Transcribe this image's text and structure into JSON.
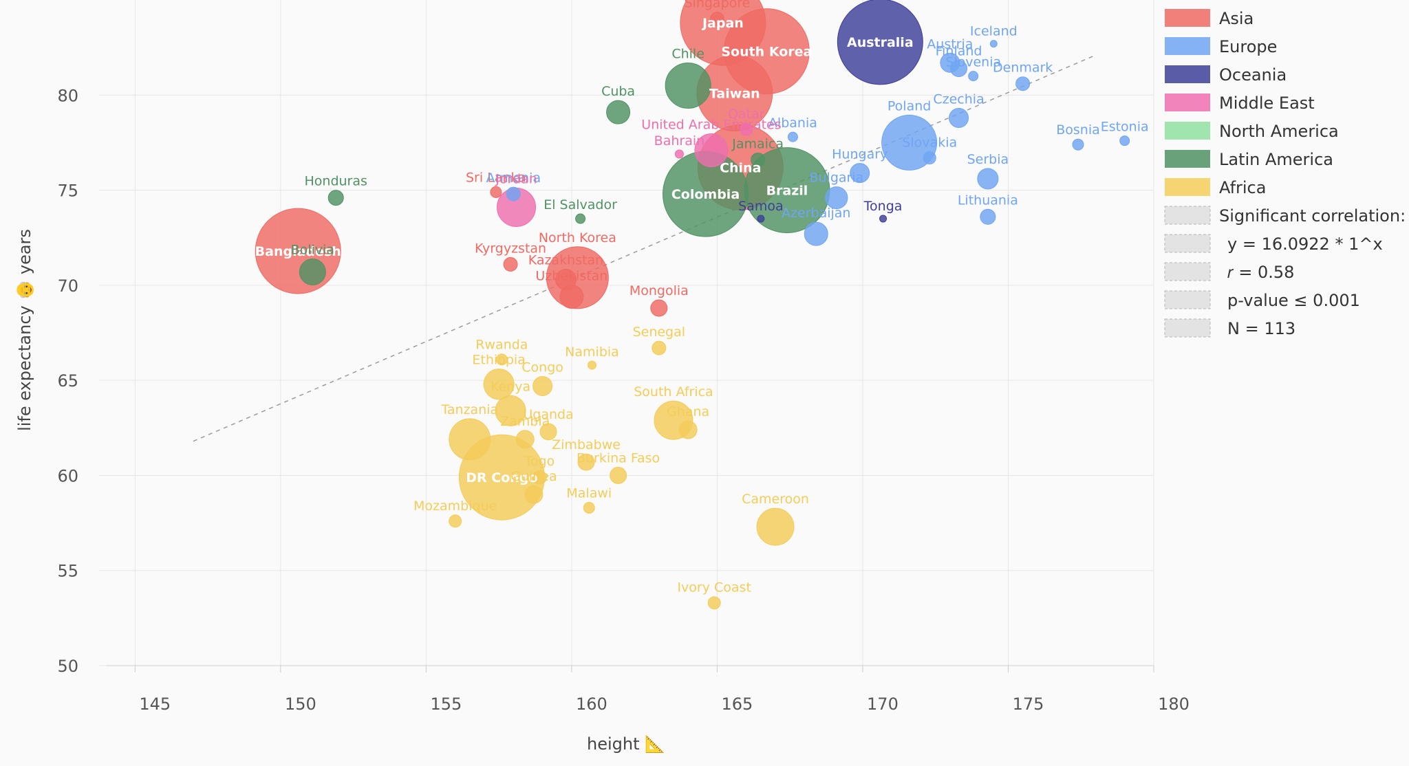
{
  "chart_data": {
    "type": "scatter",
    "title": "",
    "xlabel": "height 📐",
    "ylabel": "life expectancy 👴 years",
    "xlim": [
      144,
      180
    ],
    "ylim": [
      50,
      85
    ],
    "xticks": [
      145,
      150,
      155,
      160,
      165,
      170,
      175,
      180
    ],
    "yticks": [
      50,
      55,
      60,
      65,
      70,
      75,
      80
    ],
    "colors": {
      "Asia": "#ef6a63",
      "Europe": "#6fa5f3",
      "Oceania": "#3d3f99",
      "Middle East": "#ee6fae",
      "North America": "#8fe0a0",
      "Latin America": "#4f9263",
      "Africa": "#f4cc59"
    },
    "legend": {
      "series": [
        "Asia",
        "Europe",
        "Oceania",
        "Middle East",
        "North America",
        "Latin America",
        "Africa"
      ],
      "stats": [
        "Significant correlation:",
        "y = 16.0922 * 1^x",
        "𝑟 = 0.58",
        "p-value ≤ 0.001",
        "N = 113"
      ]
    },
    "trendline": {
      "x": [
        147,
        178
      ],
      "y": [
        61.8,
        82.1
      ]
    },
    "points": [
      {
        "name": "Japan",
        "x": 165.2,
        "y": 83.8,
        "r": 62,
        "region": "Asia",
        "inner": true
      },
      {
        "name": "Singapore",
        "x": 165.0,
        "y": 84.0,
        "r": 10,
        "region": "Asia"
      },
      {
        "name": "South Korea",
        "x": 166.7,
        "y": 82.3,
        "r": 62,
        "region": "Asia",
        "inner": true
      },
      {
        "name": "Australia",
        "x": 170.6,
        "y": 82.8,
        "r": 62,
        "region": "Oceania",
        "inner": true
      },
      {
        "name": "Taiwan",
        "x": 165.6,
        "y": 80.1,
        "r": 55,
        "region": "Asia",
        "inner": true
      },
      {
        "name": "Chile",
        "x": 164.0,
        "y": 80.5,
        "r": 33,
        "region": "Latin America"
      },
      {
        "name": "Cuba",
        "x": 161.6,
        "y": 79.1,
        "r": 17,
        "region": "Latin America"
      },
      {
        "name": "Iceland",
        "x": 174.5,
        "y": 82.7,
        "r": 5,
        "region": "Europe"
      },
      {
        "name": "Austria",
        "x": 173.0,
        "y": 81.7,
        "r": 14,
        "region": "Europe"
      },
      {
        "name": "Finland",
        "x": 173.3,
        "y": 81.4,
        "r": 12,
        "region": "Europe"
      },
      {
        "name": "Slovenia",
        "x": 173.8,
        "y": 81.0,
        "r": 7,
        "region": "Europe"
      },
      {
        "name": "Denmark",
        "x": 175.5,
        "y": 80.6,
        "r": 10,
        "region": "Europe"
      },
      {
        "name": "Czechia",
        "x": 173.3,
        "y": 78.8,
        "r": 14,
        "region": "Europe"
      },
      {
        "name": "Poland",
        "x": 171.6,
        "y": 77.5,
        "r": 40,
        "region": "Europe"
      },
      {
        "name": "Albania",
        "x": 167.6,
        "y": 77.8,
        "r": 7,
        "region": "Europe"
      },
      {
        "name": "Qatar",
        "x": 166.0,
        "y": 78.2,
        "r": 9,
        "region": "Middle East"
      },
      {
        "name": "United Arab Emirates",
        "x": 164.8,
        "y": 77.1,
        "r": 24,
        "region": "Middle East"
      },
      {
        "name": "Bahrain",
        "x": 163.7,
        "y": 76.9,
        "r": 6,
        "region": "Middle East"
      },
      {
        "name": "Jamaica",
        "x": 166.4,
        "y": 76.6,
        "r": 10,
        "region": "Latin America"
      },
      {
        "name": "China",
        "x": 165.8,
        "y": 76.2,
        "r": 62,
        "region": "Asia",
        "inner": true
      },
      {
        "name": "Brazil",
        "x": 167.4,
        "y": 75.0,
        "r": 62,
        "region": "Latin America",
        "inner": true
      },
      {
        "name": "Colombia",
        "x": 164.6,
        "y": 74.8,
        "r": 62,
        "region": "Latin America",
        "inner": true
      },
      {
        "name": "Samoa",
        "x": 166.5,
        "y": 73.5,
        "r": 5,
        "region": "Oceania"
      },
      {
        "name": "Hungary",
        "x": 169.9,
        "y": 75.9,
        "r": 14,
        "region": "Europe"
      },
      {
        "name": "Slovakia",
        "x": 172.3,
        "y": 76.7,
        "r": 9,
        "region": "Europe"
      },
      {
        "name": "Bulgaria",
        "x": 169.1,
        "y": 74.6,
        "r": 16,
        "region": "Europe"
      },
      {
        "name": "Azerbaijan",
        "x": 168.4,
        "y": 72.7,
        "r": 17,
        "region": "Europe"
      },
      {
        "name": "Tonga",
        "x": 170.7,
        "y": 73.5,
        "r": 5,
        "region": "Oceania"
      },
      {
        "name": "Serbia",
        "x": 174.3,
        "y": 75.6,
        "r": 15,
        "region": "Europe"
      },
      {
        "name": "Lithuania",
        "x": 174.3,
        "y": 73.6,
        "r": 11,
        "region": "Europe"
      },
      {
        "name": "Bosnia",
        "x": 177.4,
        "y": 77.4,
        "r": 8,
        "region": "Europe"
      },
      {
        "name": "Estonia",
        "x": 179.0,
        "y": 77.6,
        "r": 7,
        "region": "Europe"
      },
      {
        "name": "Honduras",
        "x": 151.9,
        "y": 74.6,
        "r": 11,
        "region": "Latin America"
      },
      {
        "name": "Sri Lanka",
        "x": 157.4,
        "y": 74.9,
        "r": 8,
        "region": "Asia"
      },
      {
        "name": "Armenia",
        "x": 158.0,
        "y": 74.8,
        "r": 10,
        "region": "Europe"
      },
      {
        "name": "Jordan",
        "x": 158.1,
        "y": 74.1,
        "r": 28,
        "region": "Middle East"
      },
      {
        "name": "El Salvador",
        "x": 160.3,
        "y": 73.5,
        "r": 7,
        "region": "Latin America"
      },
      {
        "name": "Bangladesh",
        "x": 150.6,
        "y": 71.8,
        "r": 62,
        "region": "Asia",
        "inner": true
      },
      {
        "name": "Bolivia",
        "x": 151.1,
        "y": 70.7,
        "r": 19,
        "region": "Latin America"
      },
      {
        "name": "North Korea",
        "x": 160.2,
        "y": 70.4,
        "r": 45,
        "region": "Asia"
      },
      {
        "name": "Kyrgyzstan",
        "x": 157.9,
        "y": 71.1,
        "r": 10,
        "region": "Asia"
      },
      {
        "name": "Kazakhstan",
        "x": 159.8,
        "y": 70.3,
        "r": 15,
        "region": "Asia"
      },
      {
        "name": "Uzbekistan",
        "x": 160.0,
        "y": 69.4,
        "r": 17,
        "region": "Asia"
      },
      {
        "name": "Mongolia",
        "x": 163.0,
        "y": 68.8,
        "r": 12,
        "region": "Asia"
      },
      {
        "name": "Senegal",
        "x": 163.0,
        "y": 66.7,
        "r": 10,
        "region": "Africa"
      },
      {
        "name": "Rwanda",
        "x": 157.6,
        "y": 66.1,
        "r": 8,
        "region": "Africa"
      },
      {
        "name": "Namibia",
        "x": 160.7,
        "y": 65.8,
        "r": 6,
        "region": "Africa"
      },
      {
        "name": "Ethiopia",
        "x": 157.5,
        "y": 64.8,
        "r": 22,
        "region": "Africa"
      },
      {
        "name": "Congo",
        "x": 159.0,
        "y": 64.7,
        "r": 14,
        "region": "Africa"
      },
      {
        "name": "Kenya",
        "x": 157.9,
        "y": 63.4,
        "r": 22,
        "region": "Africa"
      },
      {
        "name": "South Africa",
        "x": 163.5,
        "y": 62.9,
        "r": 28,
        "region": "Africa"
      },
      {
        "name": "Ghana",
        "x": 164.0,
        "y": 62.4,
        "r": 13,
        "region": "Africa"
      },
      {
        "name": "Tanzania",
        "x": 156.5,
        "y": 61.9,
        "r": 30,
        "region": "Africa"
      },
      {
        "name": "Uganda",
        "x": 159.2,
        "y": 62.3,
        "r": 12,
        "region": "Africa"
      },
      {
        "name": "Zambia",
        "x": 158.4,
        "y": 61.9,
        "r": 13,
        "region": "Africa"
      },
      {
        "name": "Zimbabwe",
        "x": 160.5,
        "y": 60.7,
        "r": 12,
        "region": "Africa"
      },
      {
        "name": "Burkina Faso",
        "x": 161.6,
        "y": 60.0,
        "r": 12,
        "region": "Africa"
      },
      {
        "name": "DR Congo",
        "x": 157.6,
        "y": 59.9,
        "r": 62,
        "region": "Africa",
        "inner": true
      },
      {
        "name": "Togo",
        "x": 158.9,
        "y": 59.9,
        "r": 10,
        "region": "Africa"
      },
      {
        "name": "Guinea",
        "x": 158.7,
        "y": 59.0,
        "r": 13,
        "region": "Africa"
      },
      {
        "name": "Malawi",
        "x": 160.6,
        "y": 58.3,
        "r": 8,
        "region": "Africa"
      },
      {
        "name": "Mozambique",
        "x": 156.0,
        "y": 57.6,
        "r": 9,
        "region": "Africa"
      },
      {
        "name": "Cameroon",
        "x": 167.0,
        "y": 57.3,
        "r": 27,
        "region": "Africa"
      },
      {
        "name": "Ivory Coast",
        "x": 164.9,
        "y": 53.3,
        "r": 9,
        "region": "Africa"
      }
    ]
  }
}
